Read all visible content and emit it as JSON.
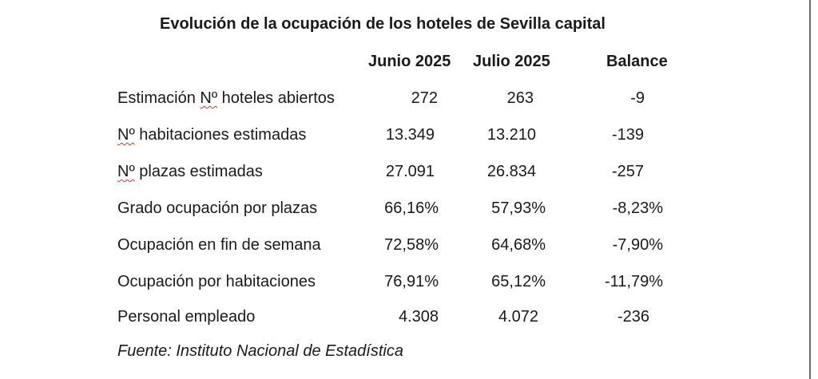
{
  "title": "Evolución de la ocupación de los hoteles de Sevilla capital",
  "columns": [
    "Junio 2025",
    "Julio 2025",
    "Balance"
  ],
  "rows": [
    {
      "prefix": "Estimación ",
      "mark": "Nº",
      "suffix": " hoteles abiertos",
      "jun": "272",
      "jul": "263",
      "bal": "-9"
    },
    {
      "prefix": "",
      "mark": "Nº",
      "suffix": " habitaciones estimadas",
      "jun": "13.349",
      "jul": "13.210",
      "bal": "-139"
    },
    {
      "prefix": "",
      "mark": "Nº",
      "suffix": " plazas estimadas",
      "jun": "27.091",
      "jul": "26.834",
      "bal": "-257"
    },
    {
      "prefix": "Grado ocupación por plazas",
      "mark": "",
      "suffix": "",
      "jun": "66,16%",
      "jul": "57,93%",
      "bal": "-8,23%"
    },
    {
      "prefix": "Ocupación en fin de semana",
      "mark": "",
      "suffix": "",
      "jun": "72,58%",
      "jul": "64,68%",
      "bal": "-7,90%"
    },
    {
      "prefix": "Ocupación por habitaciones",
      "mark": "",
      "suffix": "",
      "jun": "76,91%",
      "jul": "65,12%",
      "bal": "-11,79%"
    },
    {
      "prefix": "Personal empleado",
      "mark": "",
      "suffix": "",
      "jun": "4.308",
      "jul": "4.072",
      "bal": "-236"
    }
  ],
  "source": "Fuente: Instituto Nacional de Estadística"
}
